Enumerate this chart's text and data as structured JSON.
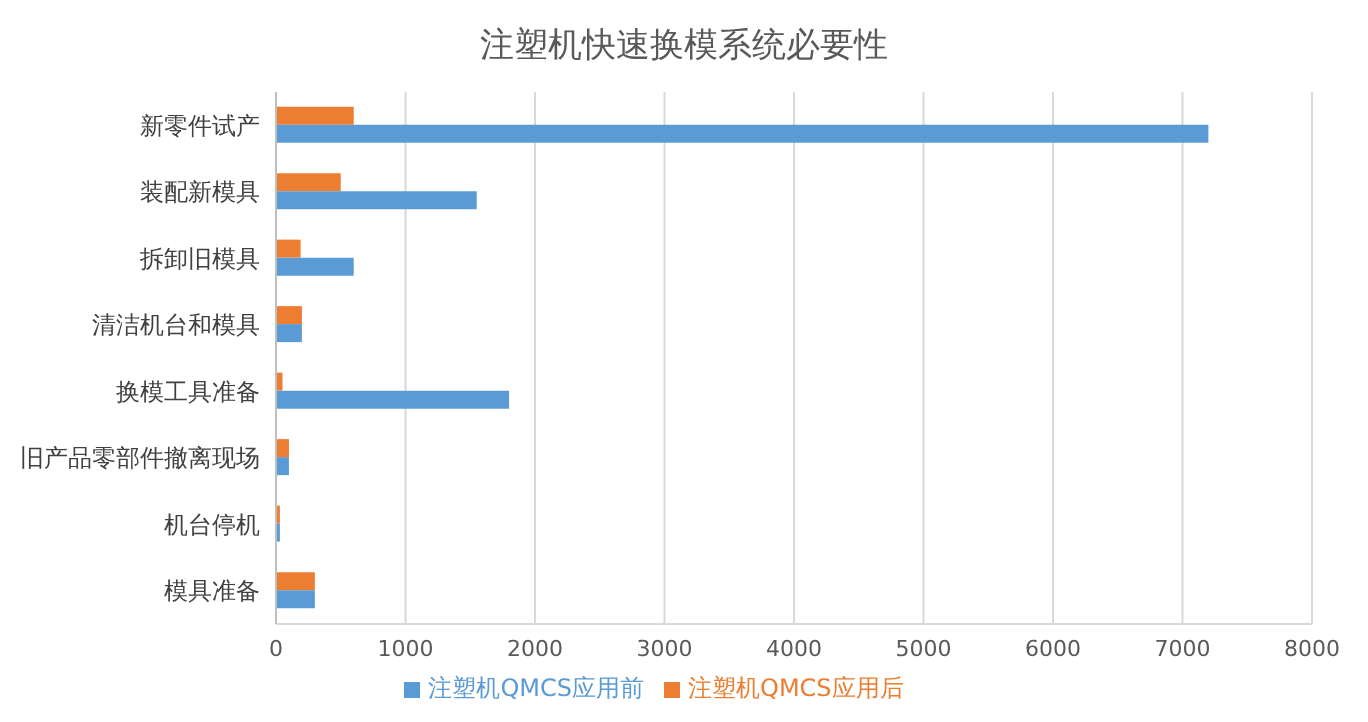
{
  "chart_data": {
    "type": "bar",
    "orientation": "horizontal",
    "title": "注塑机快速换模系统必要性",
    "categories": [
      "新零件试产",
      "装配新模具",
      "拆卸旧模具",
      "清洁机台和模具",
      "换模工具准备",
      "旧产品零部件撤离现场",
      "机台停机",
      "模具准备"
    ],
    "series": [
      {
        "name": "注塑机QMCS应用后",
        "color": "#ed7d31",
        "values": [
          600,
          500,
          190,
          200,
          50,
          100,
          30,
          300
        ]
      },
      {
        "name": "注塑机QMCS应用前",
        "color": "#5b9bd5",
        "values": [
          7200,
          1550,
          600,
          200,
          1800,
          100,
          30,
          300
        ]
      }
    ],
    "xlim": [
      0,
      8000
    ],
    "xticks": [
      0,
      1000,
      2000,
      3000,
      4000,
      5000,
      6000,
      7000,
      8000
    ],
    "grid": "x",
    "legend": "bottom"
  }
}
